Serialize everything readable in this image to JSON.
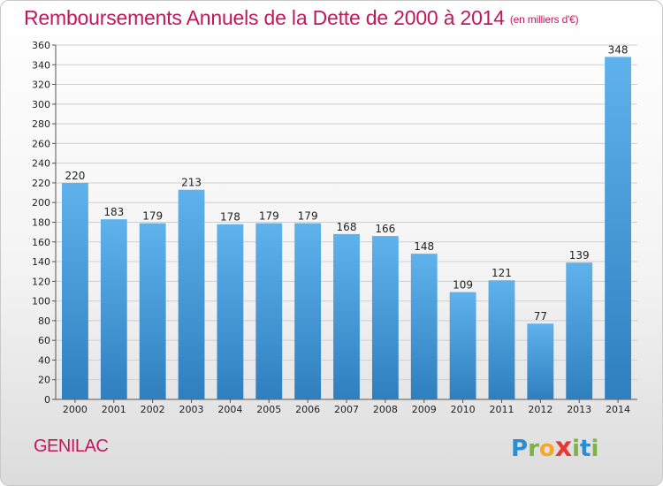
{
  "header": {
    "title": "Remboursements Annuels de la Dette de 2000 à 2014",
    "subtitle": "(en milliers d'€)"
  },
  "footer": {
    "commune": "GENILAC",
    "logo": {
      "letters": [
        "P",
        "r",
        "o",
        "x",
        "i",
        "t",
        "i"
      ],
      "colors": [
        "#2a8dd4",
        "#7cb342",
        "#f9a825",
        "#e53935",
        "#7cb342",
        "#2a8dd4",
        "#7cb342"
      ]
    }
  },
  "colors": {
    "title": "#c2185b",
    "bar_top": "#5fb2ec",
    "bar_bottom": "#2f7fbf",
    "grid": "#cfcfcf"
  },
  "chart_data": {
    "type": "bar",
    "title": "Remboursements Annuels de la Dette de 2000 à 2014",
    "subtitle": "(en milliers d'€)",
    "categories": [
      "2000",
      "2001",
      "2002",
      "2003",
      "2004",
      "2005",
      "2006",
      "2007",
      "2008",
      "2009",
      "2010",
      "2011",
      "2012",
      "2013",
      "2014"
    ],
    "values": [
      220,
      183,
      179,
      213,
      178,
      179,
      179,
      168,
      166,
      148,
      109,
      121,
      77,
      139,
      348
    ],
    "ylim": [
      0,
      360
    ],
    "yticks": [
      0,
      20,
      40,
      60,
      80,
      100,
      120,
      140,
      160,
      180,
      200,
      220,
      240,
      260,
      280,
      300,
      320,
      340,
      360
    ],
    "grid": true,
    "xlabel": "",
    "ylabel": ""
  }
}
